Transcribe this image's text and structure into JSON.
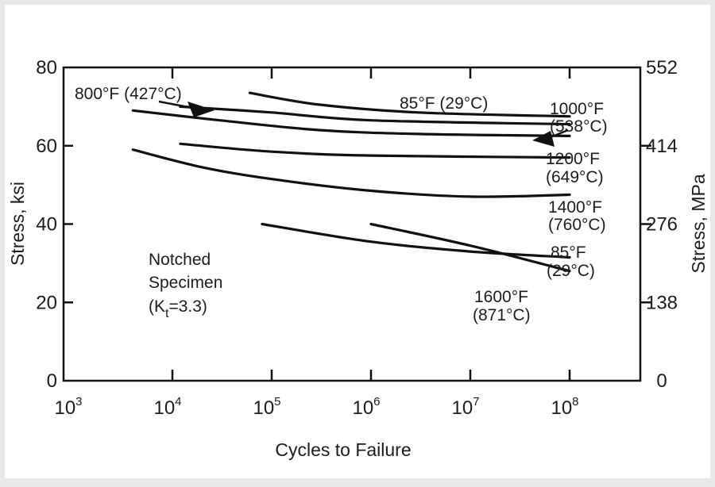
{
  "chart_data": {
    "type": "line",
    "title": "",
    "xlabel": "Cycles to Failure",
    "ylabel_left": "Stress, ksi",
    "ylabel_right": "Stress, MPa",
    "x_scale": "log",
    "xlim": [
      1000,
      1000000000
    ],
    "ylim": [
      0,
      80
    ],
    "x_ticks": [
      {
        "value": 1000,
        "base": "10",
        "exp": "3"
      },
      {
        "value": 10000,
        "base": "10",
        "exp": "4"
      },
      {
        "value": 100000,
        "base": "10",
        "exp": "5"
      },
      {
        "value": 1000000,
        "base": "10",
        "exp": "6"
      },
      {
        "value": 10000000,
        "base": "10",
        "exp": "7"
      },
      {
        "value": 100000000,
        "base": "10",
        "exp": "8"
      }
    ],
    "y_ticks_left": [
      {
        "value": 0,
        "label": "0"
      },
      {
        "value": 20,
        "label": "20"
      },
      {
        "value": 40,
        "label": "40"
      },
      {
        "value": 60,
        "label": "60"
      },
      {
        "value": 80,
        "label": "80"
      }
    ],
    "y_ticks_right": [
      {
        "value": 0,
        "label": "0"
      },
      {
        "value": 20,
        "label": "138"
      },
      {
        "value": 40,
        "label": "276"
      },
      {
        "value": 60,
        "label": "414"
      },
      {
        "value": 80,
        "label": "552"
      }
    ],
    "grid": false,
    "legend": "none",
    "series": [
      {
        "name": "85°F (29°C)",
        "points": [
          [
            60000,
            73.5
          ],
          [
            300000,
            70.5
          ],
          [
            3000000,
            68.5
          ],
          [
            100000000,
            67.5
          ]
        ]
      },
      {
        "name": "800°F (427°C)",
        "points": [
          [
            12000,
            70
          ],
          [
            100000,
            68.5
          ],
          [
            1000000,
            66.5
          ],
          [
            100000000,
            65.5
          ]
        ]
      },
      {
        "name": "1000°F (538°C)",
        "points": [
          [
            4000,
            69
          ],
          [
            30000,
            66.5
          ],
          [
            300000,
            64
          ],
          [
            3000000,
            63
          ],
          [
            100000000,
            62.5
          ]
        ]
      },
      {
        "name": "1200°F (649°C)",
        "points": [
          [
            12000,
            60.5
          ],
          [
            100000,
            58.5
          ],
          [
            1000000,
            57.5
          ],
          [
            100000000,
            57
          ]
        ]
      },
      {
        "name": "1400°F (760°C)",
        "points": [
          [
            4000,
            59
          ],
          [
            20000,
            54.5
          ],
          [
            100000,
            51.5
          ],
          [
            1000000,
            48.5
          ],
          [
            10000000,
            47
          ],
          [
            100000000,
            47.5
          ]
        ]
      },
      {
        "name": "85°F (29°C)",
        "points": [
          [
            80000,
            40
          ],
          [
            1000000,
            35.5
          ],
          [
            10000000,
            33
          ],
          [
            100000000,
            31.5
          ]
        ]
      },
      {
        "name": "1600°F (871°C)",
        "points": [
          [
            1000000,
            40
          ],
          [
            10000000,
            34.5
          ],
          [
            100000000,
            28
          ]
        ]
      }
    ],
    "annotations": {
      "s800": "800°F (427°C)",
      "s85_top": "85°F (29°C)",
      "s1000_f": "1000°F",
      "s1000_c": "(538°C)",
      "s1200_f": "1200°F",
      "s1200_c": "(649°C)",
      "s1400_f": "1400°F",
      "s1400_c": "(760°C)",
      "s85_bot_f": "85°F",
      "s85_bot_c": "(29°C)",
      "s1600_f": "1600°F",
      "s1600_c": "(871°C)",
      "notched_1": "Notched",
      "notched_2": "Specimen",
      "notched_3_pre": "(K",
      "notched_3_sub": "t",
      "notched_3_post": "=3.3)"
    }
  }
}
